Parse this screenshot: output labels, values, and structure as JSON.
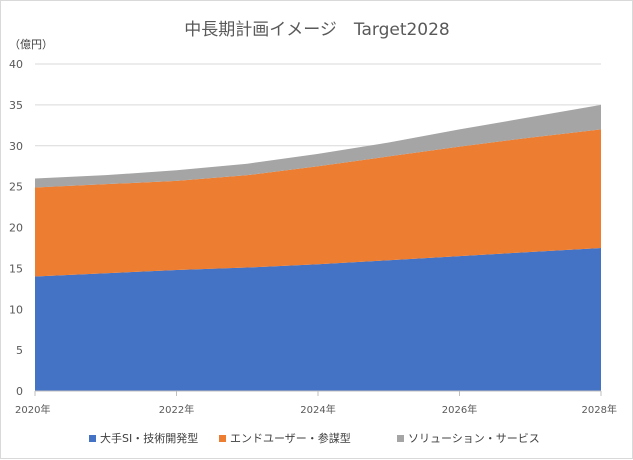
{
  "chart_data": {
    "type": "area",
    "stacked": true,
    "title": "中長期計画イメージ　Target2028",
    "ylabel": "（億円）",
    "ylim": [
      0,
      40
    ],
    "yticks": [
      0,
      5,
      10,
      15,
      20,
      25,
      30,
      35,
      40
    ],
    "x": [
      2020,
      2021,
      2022,
      2023,
      2024,
      2025,
      2026,
      2027,
      2028
    ],
    "xtick_labels": [
      "2020年",
      "2022年",
      "2024年",
      "2026年",
      "2028年"
    ],
    "grid": true,
    "legend_position": "bottom",
    "series": [
      {
        "name": "大手SI・技術開発型",
        "color": "#4472C4",
        "values": [
          14.0,
          14.4,
          14.8,
          15.1,
          15.5,
          16.0,
          16.5,
          17.0,
          17.5
        ]
      },
      {
        "name": "エンドユーザー・参謀型",
        "color": "#ED7D31",
        "values": [
          10.9,
          10.9,
          10.9,
          11.3,
          12.0,
          12.7,
          13.4,
          14.0,
          14.5
        ]
      },
      {
        "name": "ソリューション・サービス",
        "color": "#A5A5A5",
        "values": [
          1.1,
          1.1,
          1.3,
          1.4,
          1.5,
          1.7,
          2.1,
          2.5,
          3.0
        ]
      }
    ]
  }
}
